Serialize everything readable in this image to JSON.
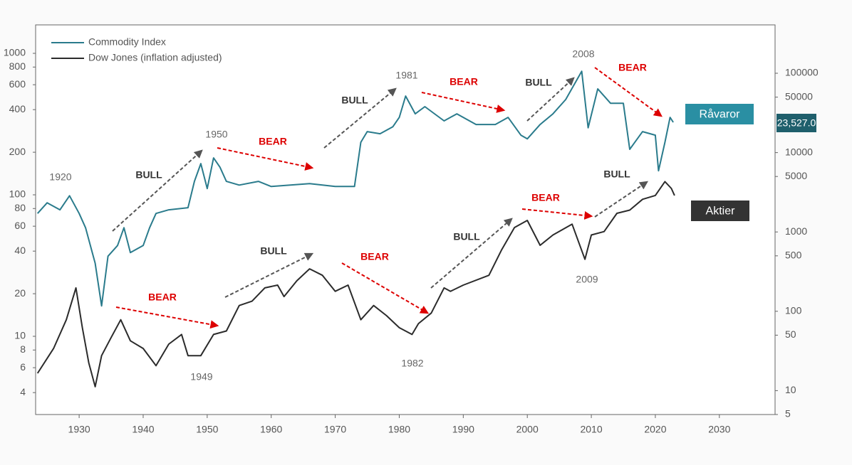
{
  "chart_data": {
    "type": "line",
    "xlim": [
      1923.2,
      2038.7
    ],
    "xticks": [
      1930,
      1940,
      1950,
      1960,
      1970,
      1980,
      1990,
      2000,
      2010,
      2020,
      2030
    ],
    "ylim": [
      2.8,
      1589
    ],
    "yticks": [
      4,
      6,
      8,
      10,
      20,
      40,
      60,
      80,
      100,
      200,
      400,
      600,
      800,
      1000
    ],
    "y2lim": [
      5,
      407000
    ],
    "y2ticks": [
      5,
      10,
      50,
      100,
      500,
      1000,
      5000,
      10000,
      50000,
      100000
    ],
    "log_scale": true,
    "series": [
      {
        "name": "Commodity Index",
        "color": "#2a7b8c",
        "axis": "y2",
        "x": [
          1923.5,
          1925,
          1927,
          1928.5,
          1930,
          1931,
          1932.5,
          1933.5,
          1934.5,
          1936,
          1937,
          1938,
          1939,
          1940,
          1941,
          1942,
          1944,
          1947,
          1948,
          1949,
          1950,
          1951,
          1952,
          1953,
          1955,
          1958,
          1960,
          1963,
          1966,
          1970,
          1973,
          1974,
          1975,
          1977,
          1979,
          1980,
          1981,
          1982.5,
          1984,
          1987,
          1989,
          1992,
          1995,
          1997,
          1999,
          2000,
          2002,
          2004,
          2006,
          2008.5,
          2009.5,
          2011,
          2013,
          2015,
          2016,
          2018,
          2020,
          2020.5,
          2021.5,
          2022.3,
          2022.8
        ],
        "values": [
          1710,
          2330,
          1900,
          2860,
          1710,
          1130,
          403,
          117,
          495,
          675,
          1130,
          550,
          610,
          675,
          1130,
          1710,
          1900,
          2020,
          4340,
          7260,
          3520,
          8570,
          6540,
          4340,
          3900,
          4340,
          3740,
          3900,
          4070,
          3740,
          3740,
          13500,
          18400,
          17300,
          21200,
          27800,
          51600,
          30800,
          37900,
          25100,
          30800,
          22600,
          22600,
          27800,
          16600,
          14900,
          22600,
          30800,
          46600,
          106000,
          20500,
          63500,
          41900,
          41900,
          11000,
          18400,
          16600,
          5900,
          13500,
          27800,
          24100
        ],
        "last_label": "23,527.0",
        "tag": "Råvaror"
      },
      {
        "name": "Dow Jones (inflation adjusted)",
        "color": "#2b2b2b",
        "axis": "y",
        "x": [
          1923.5,
          1926,
          1928,
          1929.5,
          1930.5,
          1931.5,
          1932.5,
          1933.5,
          1935,
          1936.5,
          1938,
          1940,
          1942,
          1944,
          1946,
          1947,
          1949,
          1951,
          1953,
          1955,
          1957,
          1959,
          1961,
          1962,
          1964,
          1966,
          1968,
          1970,
          1972,
          1974,
          1976,
          1978,
          1980,
          1982,
          1983,
          1985,
          1987,
          1988,
          1990,
          1994,
          1996,
          1998,
          2000,
          2002,
          2004,
          2007,
          2009,
          2010,
          2012,
          2014,
          2016,
          2018,
          2020,
          2021.5,
          2022.5,
          2023
        ],
        "values": [
          5.48,
          8.2,
          13.1,
          22,
          11.5,
          6.5,
          4.4,
          7.3,
          9.8,
          13.1,
          9.3,
          8.2,
          6.2,
          8.8,
          10.3,
          7.3,
          7.3,
          10.3,
          10.9,
          16.5,
          17.7,
          22,
          23,
          19.1,
          24.7,
          30,
          27,
          20.8,
          23,
          13.1,
          16.5,
          14,
          11.5,
          10.3,
          12.3,
          14.6,
          22,
          20.8,
          23,
          27,
          41,
          58.7,
          65.9,
          44,
          52,
          62,
          35,
          52,
          55,
          74,
          78,
          93,
          99,
          124,
          111,
          99
        ],
        "tag": "Aktier"
      }
    ],
    "annotations": [
      "1920",
      "BULL",
      "1950",
      "BEAR",
      "BULL",
      "1981",
      "BEAR",
      "BULL",
      "2008",
      "BEAR",
      "BEAR",
      "1949",
      "BULL",
      "BEAR",
      "1982",
      "BULL",
      "BEAR",
      "2009",
      "BULL"
    ],
    "legend": "upper left"
  }
}
